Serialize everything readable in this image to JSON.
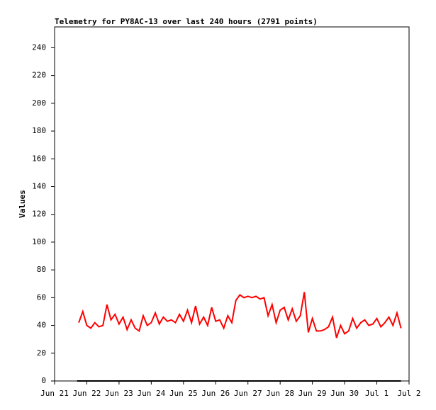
{
  "chart_data": {
    "type": "line",
    "title": "Telemetry for PY8AC-13 over last 240 hours (2791 points)",
    "y_label": "Values",
    "xlim": [
      0,
      11
    ],
    "ylim": [
      0,
      255
    ],
    "xticks": [
      {
        "value": 0,
        "label": "Jun 21"
      },
      {
        "value": 1,
        "label": "Jun 22"
      },
      {
        "value": 2,
        "label": "Jun 23"
      },
      {
        "value": 3,
        "label": "Jun 24"
      },
      {
        "value": 4,
        "label": "Jun 25"
      },
      {
        "value": 5,
        "label": "Jun 26"
      },
      {
        "value": 6,
        "label": "Jun 27"
      },
      {
        "value": 7,
        "label": "Jun 28"
      },
      {
        "value": 8,
        "label": "Jun 29"
      },
      {
        "value": 9,
        "label": "Jun 30"
      },
      {
        "value": 10,
        "label": "Jul 1"
      },
      {
        "value": 11,
        "label": "Jul 2"
      }
    ],
    "yticks": [
      0,
      20,
      40,
      60,
      80,
      100,
      120,
      140,
      160,
      180,
      200,
      220,
      240
    ],
    "series": [
      {
        "color": "#ff0000",
        "x": [
          0.75,
          0.875,
          1,
          1.125,
          1.25,
          1.375,
          1.5,
          1.625,
          1.75,
          1.875,
          2,
          2.125,
          2.25,
          2.375,
          2.5,
          2.625,
          2.75,
          2.875,
          3,
          3.125,
          3.25,
          3.375,
          3.5,
          3.625,
          3.75,
          3.875,
          4,
          4.125,
          4.25,
          4.375,
          4.5,
          4.625,
          4.75,
          4.875,
          5,
          5.125,
          5.25,
          5.375,
          5.5,
          5.625,
          5.75,
          5.875,
          6,
          6.125,
          6.25,
          6.375,
          6.5,
          6.625,
          6.75,
          6.875,
          7,
          7.125,
          7.25,
          7.375,
          7.5,
          7.625,
          7.75,
          7.875,
          8,
          8.125,
          8.25,
          8.375,
          8.5,
          8.625,
          8.75,
          8.875,
          9,
          9.125,
          9.25,
          9.375,
          9.5,
          9.625,
          9.75,
          9.875,
          10,
          10.125,
          10.25,
          10.375,
          10.5,
          10.625,
          10.75
        ],
        "values": [
          42,
          50,
          40,
          38,
          42,
          39,
          40,
          55,
          44,
          48,
          41,
          46,
          37,
          44,
          38,
          36,
          47,
          40,
          42,
          49,
          41,
          46,
          43,
          44,
          42,
          48,
          43,
          51,
          42,
          54,
          41,
          46,
          40,
          53,
          43,
          44,
          38,
          47,
          42,
          58,
          62,
          60,
          61,
          60,
          61,
          59,
          60,
          47,
          55,
          42,
          51,
          53,
          44,
          52,
          43,
          47,
          64,
          35,
          45,
          36,
          36,
          37,
          39,
          46,
          31,
          40,
          34,
          36,
          45,
          38,
          42,
          44,
          40,
          41,
          45,
          39,
          42,
          46,
          40,
          49,
          38
        ]
      },
      {
        "color": "#000000",
        "x": [
          0.7,
          10.75
        ],
        "values": [
          0,
          0
        ]
      }
    ]
  }
}
